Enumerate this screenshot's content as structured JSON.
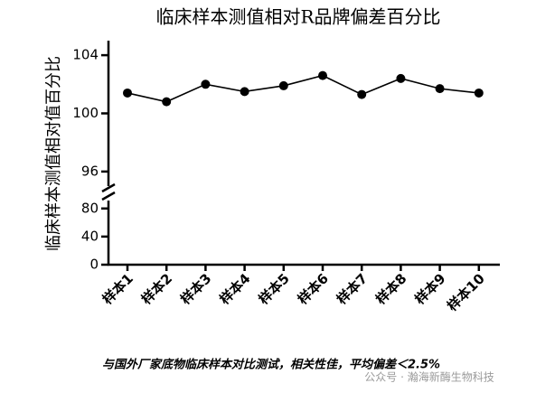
{
  "chart_data": {
    "type": "line",
    "title": "临床样本测值相对R品牌偏差百分比",
    "y_label": "临床样本测值相对值百分比",
    "categories": [
      "样本1",
      "样本2",
      "样本3",
      "样本4",
      "样本5",
      "样本6",
      "样本7",
      "样本8",
      "样本9",
      "样本10"
    ],
    "series": [
      {
        "color": "#000000",
        "values": [
          101.4,
          100.8,
          102.0,
          101.5,
          101.9,
          102.6,
          101.3,
          102.4,
          101.7,
          101.4
        ]
      }
    ],
    "y_segments": [
      {
        "ylim": [
          0,
          90
        ],
        "yticks": [
          0,
          40,
          80
        ]
      },
      {
        "ylim": [
          95,
          105
        ],
        "yticks": [
          96,
          100,
          104
        ]
      }
    ]
  },
  "caption": "与国外厂家底物临床样本对比测试，相关性佳，平均偏差＜2.5%",
  "watermark": "公众号 · 瀚海新酶生物科技"
}
